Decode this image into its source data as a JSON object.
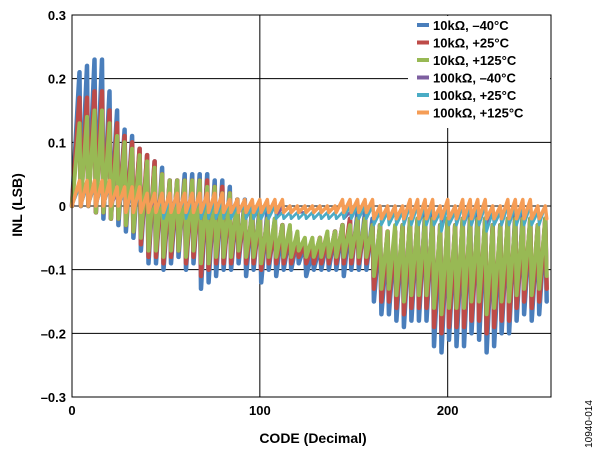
{
  "figure_id": "10940-014",
  "chart_data": {
    "type": "line",
    "xlabel": "CODE (Decimal)",
    "ylabel": "INL (LSB)",
    "xlim": [
      0,
      255
    ],
    "ylim": [
      -0.3,
      0.3
    ],
    "x_ticks": [
      {
        "value": 0,
        "label": "0"
      },
      {
        "value": 100,
        "label": "100"
      },
      {
        "value": 200,
        "label": "200"
      }
    ],
    "y_ticks": [
      {
        "value": 0.3,
        "label": "0.3"
      },
      {
        "value": 0.2,
        "label": "0.2"
      },
      {
        "value": 0.1,
        "label": "0.1"
      },
      {
        "value": 0,
        "label": "0"
      },
      {
        "value": -0.1,
        "label": "–0.1"
      },
      {
        "value": -0.2,
        "label": "–0.2"
      },
      {
        "value": -0.3,
        "label": "–0.3"
      }
    ],
    "grid": true,
    "legend_position": "top-right",
    "code_step": 4,
    "series": [
      {
        "name": "10kΩ, –40°C",
        "color": "#4a7ebb",
        "peaks": [
          0.0,
          0.21,
          0.22,
          0.23,
          0.23,
          0.18,
          0.15,
          0.12,
          0.11,
          0.09,
          0.08,
          0.07,
          0.06,
          0.04,
          0.04,
          0.05,
          0.05,
          0.05,
          0.05,
          0.04,
          0.04,
          0.03,
          0.01,
          0.01,
          0.0,
          0.0,
          -0.01,
          -0.02,
          -0.03,
          -0.04,
          -0.05,
          -0.06,
          -0.07,
          -0.06,
          -0.05,
          -0.04,
          -0.03,
          -0.02,
          -0.01,
          -0.01,
          -0.02,
          -0.03,
          -0.05,
          -0.04,
          -0.03,
          -0.02,
          -0.02,
          -0.01,
          -0.01,
          -0.03,
          -0.02,
          -0.03,
          -0.02,
          -0.01,
          -0.01,
          -0.02,
          -0.03,
          -0.03,
          -0.02,
          -0.01,
          -0.01,
          -0.02,
          -0.03,
          -0.02,
          0.0
        ],
        "troughs": [
          0.0,
          0.0,
          0.0,
          -0.01,
          -0.02,
          -0.02,
          -0.03,
          -0.04,
          -0.05,
          -0.07,
          -0.09,
          -0.09,
          -0.1,
          -0.09,
          -0.08,
          -0.1,
          -0.09,
          -0.13,
          -0.12,
          -0.11,
          -0.1,
          -0.1,
          -0.09,
          -0.11,
          -0.1,
          -0.12,
          -0.1,
          -0.11,
          -0.1,
          -0.1,
          -0.09,
          -0.11,
          -0.1,
          -0.1,
          -0.1,
          -0.1,
          -0.11,
          -0.1,
          -0.1,
          -0.1,
          -0.15,
          -0.17,
          -0.17,
          -0.18,
          -0.19,
          -0.18,
          -0.18,
          -0.18,
          -0.22,
          -0.23,
          -0.21,
          -0.22,
          -0.22,
          -0.2,
          -0.21,
          -0.23,
          -0.22,
          -0.2,
          -0.2,
          -0.18,
          -0.17,
          -0.18,
          -0.17,
          -0.15,
          0.0
        ]
      },
      {
        "name": "10kΩ, +25°C",
        "color": "#be4b48",
        "peaks": [
          0.0,
          0.17,
          0.17,
          0.18,
          0.18,
          0.15,
          0.13,
          0.11,
          0.1,
          0.09,
          0.08,
          0.07,
          0.05,
          0.04,
          0.04,
          0.04,
          0.04,
          0.04,
          0.04,
          0.03,
          0.03,
          0.02,
          0.01,
          0.0,
          -0.01,
          -0.01,
          -0.02,
          -0.03,
          -0.03,
          -0.04,
          -0.05,
          -0.06,
          -0.06,
          -0.05,
          -0.05,
          -0.04,
          -0.03,
          -0.02,
          -0.02,
          -0.02,
          -0.03,
          -0.03,
          -0.04,
          -0.04,
          -0.03,
          -0.02,
          -0.02,
          -0.02,
          -0.02,
          -0.03,
          -0.02,
          -0.03,
          -0.02,
          -0.02,
          -0.02,
          -0.02,
          -0.03,
          -0.03,
          -0.02,
          -0.02,
          -0.02,
          -0.02,
          -0.03,
          -0.02,
          0.0
        ],
        "troughs": [
          0.0,
          0.0,
          0.0,
          -0.01,
          -0.01,
          -0.02,
          -0.02,
          -0.03,
          -0.04,
          -0.06,
          -0.08,
          -0.08,
          -0.09,
          -0.08,
          -0.07,
          -0.09,
          -0.08,
          -0.11,
          -0.1,
          -0.09,
          -0.09,
          -0.09,
          -0.08,
          -0.09,
          -0.09,
          -0.1,
          -0.09,
          -0.09,
          -0.09,
          -0.09,
          -0.08,
          -0.09,
          -0.09,
          -0.09,
          -0.09,
          -0.09,
          -0.09,
          -0.09,
          -0.09,
          -0.09,
          -0.13,
          -0.15,
          -0.15,
          -0.16,
          -0.17,
          -0.16,
          -0.16,
          -0.16,
          -0.19,
          -0.2,
          -0.19,
          -0.19,
          -0.19,
          -0.18,
          -0.18,
          -0.2,
          -0.19,
          -0.18,
          -0.18,
          -0.16,
          -0.15,
          -0.16,
          -0.15,
          -0.13,
          0.0
        ]
      },
      {
        "name": "10kΩ, +125°C",
        "color": "#98b954",
        "peaks": [
          0.0,
          0.13,
          0.14,
          0.15,
          0.15,
          0.13,
          0.11,
          0.1,
          0.09,
          0.08,
          0.07,
          0.06,
          0.05,
          0.04,
          0.04,
          0.04,
          0.04,
          0.04,
          0.03,
          0.03,
          0.02,
          0.02,
          0.01,
          0.0,
          -0.01,
          -0.01,
          -0.02,
          -0.02,
          -0.03,
          -0.03,
          -0.04,
          -0.05,
          -0.05,
          -0.05,
          -0.04,
          -0.04,
          -0.03,
          -0.03,
          -0.02,
          -0.02,
          -0.03,
          -0.03,
          -0.04,
          -0.03,
          -0.03,
          -0.02,
          -0.02,
          -0.02,
          -0.02,
          -0.03,
          -0.02,
          -0.03,
          -0.02,
          -0.02,
          -0.02,
          -0.02,
          -0.03,
          -0.03,
          -0.02,
          -0.02,
          -0.02,
          -0.02,
          -0.03,
          -0.02,
          0.0
        ],
        "troughs": [
          0.0,
          0.0,
          0.0,
          -0.01,
          -0.01,
          -0.02,
          -0.02,
          -0.03,
          -0.04,
          -0.05,
          -0.07,
          -0.07,
          -0.08,
          -0.07,
          -0.07,
          -0.08,
          -0.07,
          -0.09,
          -0.09,
          -0.08,
          -0.08,
          -0.08,
          -0.07,
          -0.08,
          -0.08,
          -0.09,
          -0.08,
          -0.08,
          -0.08,
          -0.08,
          -0.07,
          -0.08,
          -0.08,
          -0.08,
          -0.08,
          -0.08,
          -0.08,
          -0.08,
          -0.08,
          -0.08,
          -0.11,
          -0.13,
          -0.13,
          -0.14,
          -0.15,
          -0.14,
          -0.14,
          -0.14,
          -0.16,
          -0.17,
          -0.16,
          -0.16,
          -0.16,
          -0.15,
          -0.15,
          -0.17,
          -0.16,
          -0.15,
          -0.15,
          -0.14,
          -0.13,
          -0.14,
          -0.13,
          -0.11,
          0.0
        ]
      },
      {
        "name": "100kΩ, –40°C",
        "color": "#7d5fa0",
        "peaks": [
          0.0,
          0.03,
          0.03,
          0.03,
          0.03,
          0.03,
          0.02,
          0.02,
          0.02,
          0.02,
          0.02,
          0.01,
          0.01,
          0.01,
          0.01,
          0.01,
          0.01,
          0.01,
          0.01,
          0.01,
          0.01,
          0.01,
          0.0,
          0.0,
          0.0,
          0.0,
          0.0,
          0.0,
          0.0,
          -0.01,
          -0.01,
          -0.01,
          -0.01,
          -0.01,
          -0.01,
          -0.01,
          -0.01,
          -0.01,
          0.0,
          0.0,
          0.0,
          -0.01,
          -0.01,
          -0.01,
          -0.01,
          0.0,
          0.0,
          0.0,
          0.0,
          -0.01,
          0.0,
          -0.01,
          0.0,
          0.0,
          0.0,
          0.0,
          -0.01,
          -0.01,
          0.0,
          0.0,
          0.0,
          0.0,
          -0.01,
          0.0,
          0.0
        ],
        "troughs": [
          0.0,
          0.0,
          0.0,
          0.0,
          0.0,
          0.0,
          0.0,
          -0.01,
          -0.01,
          -0.01,
          -0.01,
          -0.01,
          -0.01,
          -0.01,
          -0.01,
          -0.01,
          -0.01,
          -0.02,
          -0.02,
          -0.02,
          -0.01,
          -0.01,
          -0.01,
          -0.02,
          -0.02,
          -0.02,
          -0.02,
          -0.02,
          -0.02,
          -0.02,
          -0.01,
          -0.02,
          -0.02,
          -0.02,
          -0.02,
          -0.02,
          -0.02,
          -0.02,
          -0.02,
          -0.02,
          -0.02,
          -0.02,
          -0.02,
          -0.02,
          -0.02,
          -0.02,
          -0.02,
          -0.02,
          -0.03,
          -0.03,
          -0.03,
          -0.03,
          -0.03,
          -0.03,
          -0.03,
          -0.03,
          -0.03,
          -0.03,
          -0.03,
          -0.02,
          -0.02,
          -0.02,
          -0.02,
          -0.02,
          0.0
        ]
      },
      {
        "name": "100kΩ, +25°C",
        "color": "#4aacc5",
        "peaks": [
          0.0,
          0.03,
          0.03,
          0.03,
          0.03,
          0.03,
          0.03,
          0.02,
          0.02,
          0.02,
          0.02,
          0.02,
          0.01,
          0.01,
          0.01,
          0.01,
          0.01,
          0.01,
          0.01,
          0.01,
          0.01,
          0.01,
          0.0,
          0.0,
          0.0,
          0.0,
          0.0,
          0.0,
          -0.01,
          -0.01,
          -0.01,
          -0.01,
          -0.01,
          -0.01,
          -0.01,
          -0.01,
          -0.01,
          0.0,
          0.0,
          0.0,
          0.0,
          -0.01,
          -0.01,
          -0.01,
          -0.01,
          0.0,
          0.0,
          0.0,
          0.0,
          -0.01,
          0.0,
          -0.01,
          0.0,
          0.0,
          0.0,
          0.0,
          -0.01,
          -0.01,
          0.0,
          0.0,
          0.0,
          0.0,
          -0.01,
          0.0,
          0.0
        ],
        "troughs": [
          0.0,
          0.0,
          0.0,
          0.0,
          0.0,
          0.0,
          0.0,
          -0.01,
          -0.01,
          -0.01,
          -0.01,
          -0.01,
          -0.02,
          -0.01,
          -0.01,
          -0.02,
          -0.01,
          -0.02,
          -0.02,
          -0.02,
          -0.02,
          -0.02,
          -0.01,
          -0.02,
          -0.02,
          -0.02,
          -0.02,
          -0.02,
          -0.02,
          -0.02,
          -0.02,
          -0.02,
          -0.02,
          -0.02,
          -0.02,
          -0.02,
          -0.02,
          -0.02,
          -0.02,
          -0.02,
          -0.03,
          -0.03,
          -0.03,
          -0.03,
          -0.03,
          -0.03,
          -0.03,
          -0.03,
          -0.03,
          -0.04,
          -0.03,
          -0.03,
          -0.03,
          -0.03,
          -0.03,
          -0.04,
          -0.03,
          -0.03,
          -0.03,
          -0.03,
          -0.03,
          -0.03,
          -0.03,
          -0.02,
          0.0
        ]
      },
      {
        "name": "100kΩ, +125°C",
        "color": "#f59d56",
        "peaks": [
          0.0,
          0.04,
          0.04,
          0.04,
          0.04,
          0.04,
          0.03,
          0.03,
          0.03,
          0.03,
          0.02,
          0.02,
          0.02,
          0.02,
          0.02,
          0.02,
          0.02,
          0.02,
          0.02,
          0.02,
          0.02,
          0.01,
          0.01,
          0.01,
          0.01,
          0.01,
          0.01,
          0.01,
          0.01,
          0.0,
          0.0,
          0.0,
          0.0,
          0.0,
          0.0,
          0.0,
          0.01,
          0.01,
          0.01,
          0.01,
          0.01,
          0.0,
          0.0,
          0.0,
          0.0,
          0.01,
          0.01,
          0.01,
          0.01,
          0.0,
          0.01,
          0.0,
          0.01,
          0.01,
          0.01,
          0.01,
          0.0,
          0.0,
          0.01,
          0.01,
          0.01,
          0.01,
          0.0,
          0.0,
          0.0
        ],
        "troughs": [
          0.0,
          0.0,
          0.0,
          0.0,
          0.0,
          0.0,
          0.0,
          -0.01,
          -0.01,
          -0.01,
          -0.01,
          -0.01,
          -0.01,
          -0.01,
          -0.01,
          -0.01,
          -0.01,
          -0.01,
          -0.01,
          -0.01,
          -0.01,
          -0.01,
          -0.01,
          -0.01,
          -0.01,
          -0.01,
          -0.01,
          -0.01,
          -0.01,
          -0.01,
          -0.01,
          -0.01,
          -0.01,
          -0.01,
          -0.01,
          -0.01,
          -0.01,
          -0.01,
          -0.01,
          -0.01,
          -0.02,
          -0.02,
          -0.02,
          -0.02,
          -0.02,
          -0.02,
          -0.02,
          -0.02,
          -0.02,
          -0.02,
          -0.02,
          -0.02,
          -0.02,
          -0.02,
          -0.02,
          -0.02,
          -0.02,
          -0.02,
          -0.02,
          -0.02,
          -0.02,
          -0.02,
          -0.02,
          -0.02,
          0.0
        ]
      }
    ]
  }
}
